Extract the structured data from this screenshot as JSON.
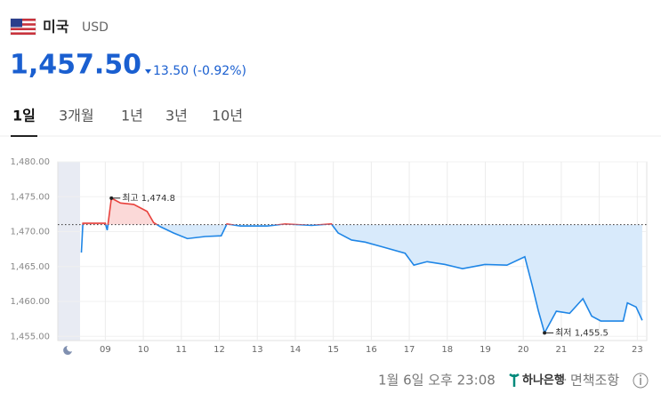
{
  "header": {
    "country": "미국",
    "currency": "USD",
    "price": "1,457.50",
    "change": "13.50 (-0.92%)"
  },
  "tabs": [
    "1일",
    "3개월",
    "1년",
    "3년",
    "10년"
  ],
  "chart_data": {
    "type": "line",
    "xlim": [
      7.75,
      23.25
    ],
    "xticks": [
      {
        "value": 9,
        "label": "09"
      },
      10,
      11,
      12,
      13,
      14,
      15,
      16,
      17,
      18,
      19,
      20,
      21,
      22,
      23
    ],
    "ylim": [
      1454.4,
      1480
    ],
    "yticks": [
      {
        "value": 1455,
        "label": "1,455.00"
      },
      {
        "value": 1460,
        "label": "1,460.00"
      },
      {
        "value": 1465,
        "label": "1,465.00"
      },
      {
        "value": 1470,
        "label": "1,470.00"
      },
      {
        "value": 1475,
        "label": "1,475.00"
      },
      {
        "value": 1480,
        "label": "1,480.00"
      }
    ],
    "baseline": 1471,
    "grid": true,
    "series": [
      {
        "color": "#1f86e6",
        "up_color": "#e8413c",
        "x": [
          8.37,
          8.41,
          9.0,
          9.05,
          9.16,
          9.4,
          9.75,
          10.1,
          10.27,
          10.45,
          10.8,
          11.16,
          11.63,
          12.05,
          12.2,
          12.56,
          13.26,
          13.73,
          14.43,
          14.95,
          15.13,
          15.48,
          15.84,
          16.3,
          16.89,
          17.12,
          17.47,
          17.94,
          18.4,
          18.99,
          19.57,
          20.04,
          20.23,
          20.4,
          20.56,
          20.87,
          21.22,
          21.57,
          21.8,
          22.04,
          22.63,
          22.74,
          22.97,
          23.13
        ],
        "values": [
          1467.0,
          1471.2,
          1471.2,
          1470.2,
          1474.8,
          1474.1,
          1473.9,
          1472.9,
          1471.3,
          1470.7,
          1469.8,
          1469.0,
          1469.3,
          1469.4,
          1471.1,
          1470.8,
          1470.8,
          1471.1,
          1470.9,
          1471.1,
          1469.8,
          1468.8,
          1468.5,
          1467.8,
          1466.9,
          1465.2,
          1465.7,
          1465.3,
          1464.7,
          1465.3,
          1465.2,
          1466.4,
          1462.4,
          1458.6,
          1455.5,
          1458.6,
          1458.3,
          1460.4,
          1457.9,
          1457.2,
          1457.2,
          1459.8,
          1459.2,
          1457.3
        ]
      }
    ],
    "annotations": [
      {
        "label": "최고 1,474.8",
        "x": 9.16,
        "y": 1474.8
      },
      {
        "label": "최저 1,455.5",
        "x": 20.56,
        "y": 1455.5
      }
    ]
  },
  "footer": {
    "timestamp": "1월 6일 오후 23:08",
    "bank": "하나은행",
    "disclaimer": "면책조항"
  }
}
